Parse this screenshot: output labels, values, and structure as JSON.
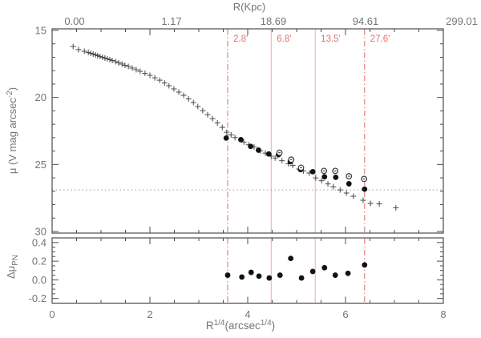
{
  "chart_data": {
    "type": "scatter",
    "xlabel_text": "R^1/4(arcsec^1/4)",
    "xlabel_parts": [
      {
        "t": "R"
      },
      {
        "t": "1/4",
        "sup": true
      },
      {
        "t": "(arcsec"
      },
      {
        "t": "1/4",
        "sup": true
      },
      {
        "t": ")"
      }
    ],
    "xlim": [
      0,
      8
    ],
    "xticks": [
      0,
      2,
      4,
      6,
      8
    ],
    "xtick_labels": [
      "0",
      "2",
      "4",
      "6",
      "8"
    ],
    "x_minor_step": 0.5,
    "top_axis": {
      "title": "R(Kpc)",
      "tick_labels": [
        "0.00",
        "1.17",
        "18.69",
        "94.61",
        "299.01"
      ],
      "at_x": [
        0,
        2,
        4,
        6,
        8
      ]
    },
    "main_panel": {
      "ylabel_text": "μ (V mag arcsec^-2)",
      "ylabel_parts": [
        {
          "t": "μ (V mag arcsec"
        },
        {
          "t": "-2",
          "sup": true
        },
        {
          "t": ")"
        }
      ],
      "ylim_bottom_top": [
        30.12,
        14.88
      ],
      "yticks": [
        15,
        20,
        25,
        30
      ],
      "ytick_labels": [
        "15",
        "20",
        "25",
        "30"
      ],
      "y_minor_step": 1,
      "dotted_hline_mu": 26.9,
      "series": [
        {
          "id": "isophotal-photometry-plus",
          "marker": "plus",
          "points": [
            [
              0.43,
              16.2
            ],
            [
              0.54,
              16.43
            ],
            [
              0.66,
              16.55
            ],
            [
              0.74,
              16.64
            ],
            [
              0.79,
              16.7
            ],
            [
              0.84,
              16.76
            ],
            [
              0.89,
              16.82
            ],
            [
              0.93,
              16.88
            ],
            [
              0.98,
              16.94
            ],
            [
              1.03,
              17.0
            ],
            [
              1.08,
              17.06
            ],
            [
              1.13,
              17.12
            ],
            [
              1.18,
              17.18
            ],
            [
              1.23,
              17.24
            ],
            [
              1.3,
              17.33
            ],
            [
              1.36,
              17.42
            ],
            [
              1.43,
              17.51
            ],
            [
              1.49,
              17.6
            ],
            [
              1.56,
              17.69
            ],
            [
              1.64,
              17.81
            ],
            [
              1.72,
              17.93
            ],
            [
              1.8,
              18.05
            ],
            [
              1.9,
              18.2
            ],
            [
              2.0,
              18.35
            ],
            [
              2.1,
              18.53
            ],
            [
              2.2,
              18.71
            ],
            [
              2.3,
              18.92
            ],
            [
              2.39,
              19.12
            ],
            [
              2.49,
              19.36
            ],
            [
              2.59,
              19.6
            ],
            [
              2.69,
              19.84
            ],
            [
              2.79,
              20.11
            ],
            [
              2.89,
              20.38
            ],
            [
              2.98,
              20.68
            ],
            [
              3.08,
              20.98
            ],
            [
              3.18,
              21.28
            ],
            [
              3.28,
              21.58
            ],
            [
              3.38,
              21.9
            ],
            [
              3.48,
              22.23
            ],
            [
              3.57,
              22.6
            ],
            [
              3.66,
              22.79
            ],
            [
              3.74,
              22.99
            ],
            [
              3.92,
              23.33
            ],
            [
              4.02,
              23.53
            ],
            [
              4.13,
              23.69
            ],
            [
              4.26,
              23.98
            ],
            [
              4.36,
              24.15
            ],
            [
              4.48,
              24.38
            ],
            [
              4.56,
              24.52
            ],
            [
              4.7,
              24.72
            ],
            [
              4.83,
              24.94
            ],
            [
              4.92,
              25.08
            ],
            [
              5.05,
              25.34
            ],
            [
              5.14,
              25.48
            ],
            [
              5.26,
              25.64
            ],
            [
              5.39,
              26.0
            ],
            [
              5.51,
              26.21
            ],
            [
              5.64,
              26.45
            ],
            [
              5.75,
              26.66
            ],
            [
              5.89,
              26.9
            ],
            [
              6.02,
              27.13
            ],
            [
              6.16,
              27.37
            ],
            [
              6.36,
              27.67
            ],
            [
              6.51,
              27.91
            ],
            [
              6.69,
              27.94
            ],
            [
              7.03,
              28.24
            ]
          ]
        },
        {
          "id": "filled-circles",
          "marker": "filled_circle",
          "points": [
            [
              3.56,
              23.03
            ],
            [
              3.86,
              23.15
            ],
            [
              4.06,
              23.65
            ],
            [
              4.22,
              23.93
            ],
            [
              4.43,
              24.22
            ],
            [
              4.63,
              24.27
            ],
            [
              4.87,
              24.79
            ],
            [
              5.08,
              25.38
            ],
            [
              5.33,
              25.54
            ],
            [
              5.57,
              25.92
            ],
            [
              5.8,
              25.96
            ],
            [
              6.07,
              26.44
            ],
            [
              6.39,
              26.84
            ]
          ]
        },
        {
          "id": "open-circles",
          "marker": "circled_dot",
          "points": [
            [
              4.65,
              24.12
            ],
            [
              4.89,
              24.64
            ],
            [
              5.09,
              25.24
            ],
            [
              5.56,
              25.48
            ],
            [
              5.79,
              25.48
            ],
            [
              6.07,
              25.88
            ],
            [
              6.38,
              26.08
            ]
          ]
        }
      ]
    },
    "residual_panel": {
      "ylabel_text": "Δμ_PN",
      "ylabel_parts": [
        {
          "t": "Δμ"
        },
        {
          "t": "PN",
          "sub": true
        }
      ],
      "ylim_bottom_top": [
        -0.25,
        0.45
      ],
      "yticks": [
        0.4,
        0.2,
        0.0,
        -0.2
      ],
      "ytick_labels": [
        "0.4",
        "0.2",
        "0.0",
        "-0.2"
      ],
      "y_minor_step": 0.05,
      "series": [
        {
          "id": "delta-mu-pn",
          "marker": "filled_circle",
          "points": [
            [
              3.59,
              0.05
            ],
            [
              3.88,
              0.03
            ],
            [
              4.07,
              0.08
            ],
            [
              4.23,
              0.04
            ],
            [
              4.44,
              0.02
            ],
            [
              4.66,
              0.05
            ],
            [
              4.88,
              0.23
            ],
            [
              5.1,
              0.02
            ],
            [
              5.33,
              0.09
            ],
            [
              5.57,
              0.13
            ],
            [
              5.79,
              0.05
            ],
            [
              6.05,
              0.07
            ],
            [
              6.39,
              0.16
            ]
          ]
        }
      ]
    },
    "aperture_lines": [
      {
        "x": 3.59,
        "label": "2.8'",
        "style": "dashdot"
      },
      {
        "x": 4.48,
        "label": "6.8'",
        "style": "solid"
      },
      {
        "x": 5.38,
        "label": "13.5'",
        "style": "solid"
      },
      {
        "x": 6.39,
        "label": "27.6'",
        "style": "dashdot"
      }
    ],
    "colors": {
      "frame": "#4d4d4d",
      "text": "#757575",
      "plus_marker": "#4a4a4a",
      "filled_marker": "#121212",
      "open_marker": "#3a3a3a",
      "red_dashdot": "#dd6b6b",
      "red_solid": "#efabab",
      "red_label": "#e07272",
      "dotted_line": "#9a9a9a",
      "background": "#ffffff"
    },
    "legend": "none",
    "grid": "off"
  }
}
